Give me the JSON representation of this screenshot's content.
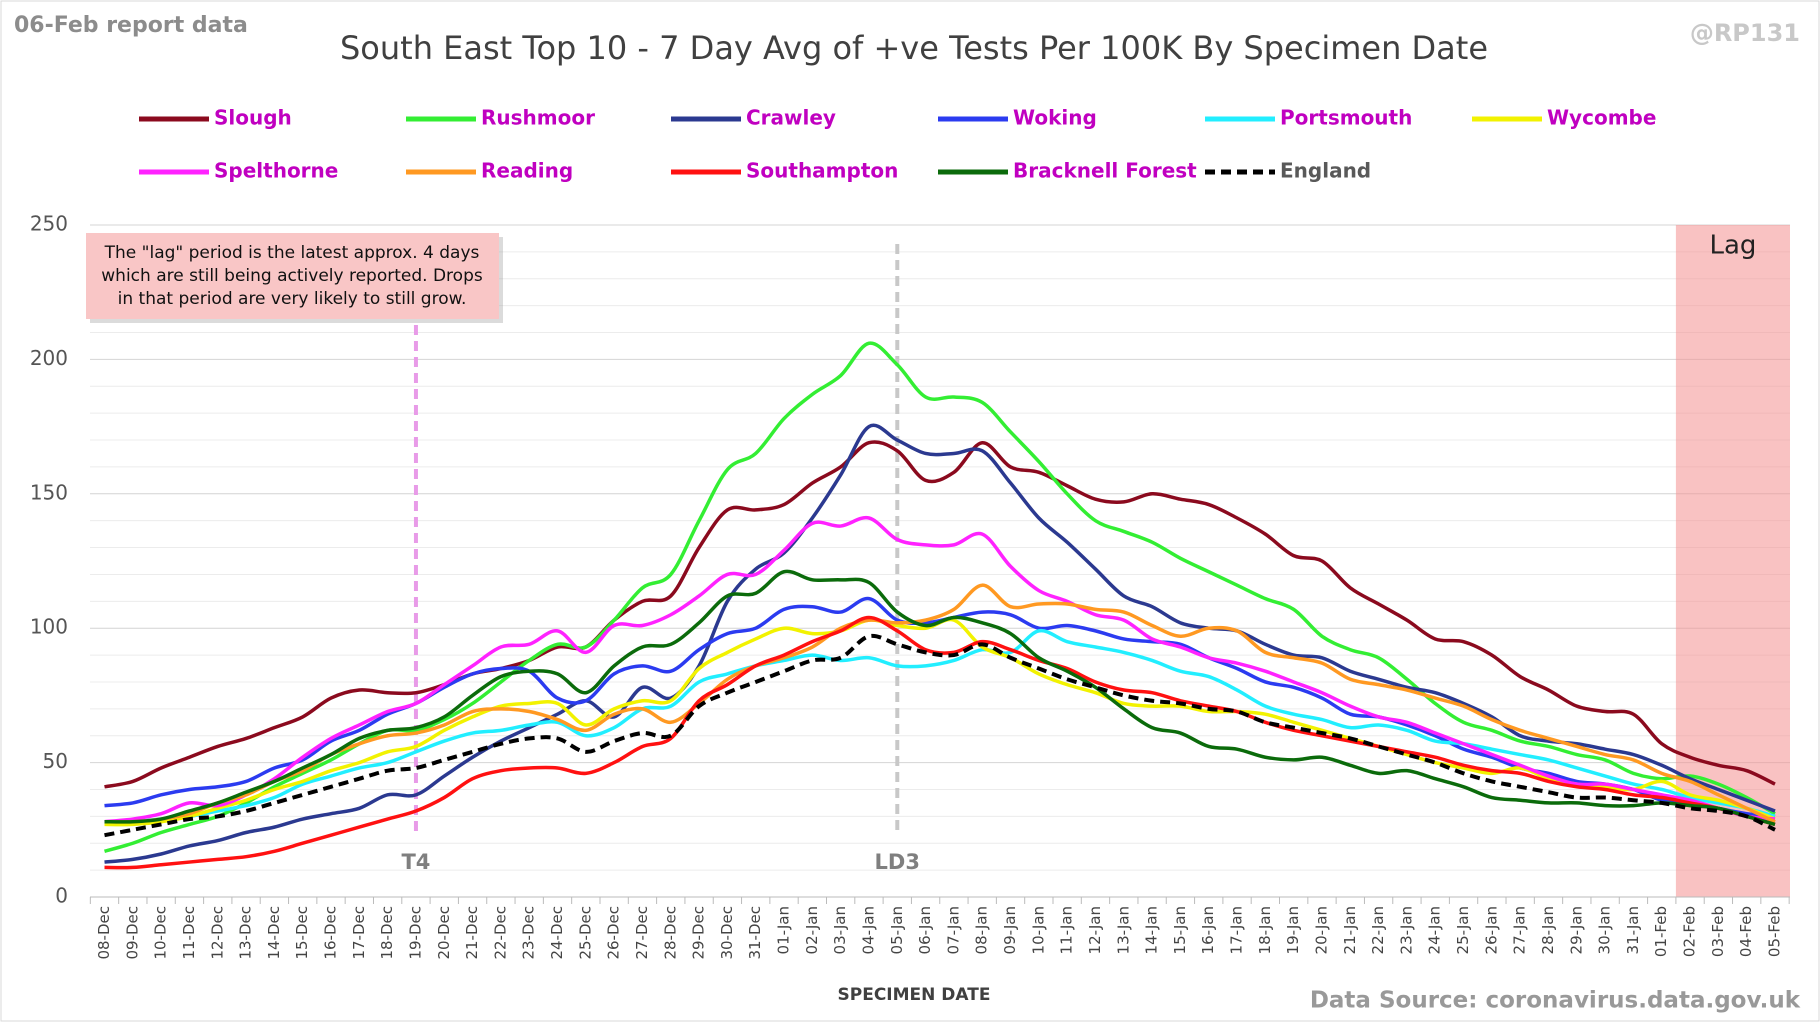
{
  "chart_data": {
    "type": "line",
    "title": "South East Top 10 - 7 Day Avg of +ve Tests Per 100K By Specimen Date",
    "report_note": "06-Feb report data",
    "handle": "@RP131",
    "x_label": "SPECIMEN DATE",
    "source": "Data Source: coronavirus.data.gov.uk",
    "note": [
      "The \"lag\" period is the latest approx. 4 days",
      "which are still being actively reported.  Drops",
      "in that period are very likely to still grow."
    ],
    "lag": {
      "label": "Lag",
      "from": "01-Feb"
    },
    "markers": [
      {
        "label": "T4",
        "x": "19-Dec",
        "color": "#e89be8"
      },
      {
        "label": "LD3",
        "x": "05-Jan",
        "color": "#c8c8c8"
      }
    ],
    "legend_text_color": "#c000c0",
    "categories": [
      "08-Dec",
      "09-Dec",
      "10-Dec",
      "11-Dec",
      "12-Dec",
      "13-Dec",
      "14-Dec",
      "15-Dec",
      "16-Dec",
      "17-Dec",
      "18-Dec",
      "19-Dec",
      "20-Dec",
      "21-Dec",
      "22-Dec",
      "23-Dec",
      "24-Dec",
      "25-Dec",
      "26-Dec",
      "27-Dec",
      "28-Dec",
      "29-Dec",
      "30-Dec",
      "31-Dec",
      "01-Jan",
      "02-Jan",
      "03-Jan",
      "04-Jan",
      "05-Jan",
      "06-Jan",
      "07-Jan",
      "08-Jan",
      "09-Jan",
      "10-Jan",
      "11-Jan",
      "12-Jan",
      "13-Jan",
      "14-Jan",
      "15-Jan",
      "16-Jan",
      "17-Jan",
      "18-Jan",
      "19-Jan",
      "20-Jan",
      "21-Jan",
      "22-Jan",
      "23-Jan",
      "24-Jan",
      "25-Jan",
      "26-Jan",
      "27-Jan",
      "28-Jan",
      "29-Jan",
      "30-Jan",
      "31-Jan",
      "01-Feb",
      "02-Feb",
      "03-Feb",
      "04-Feb",
      "05-Feb"
    ],
    "ylim": [
      0,
      250
    ],
    "yticks": [
      0,
      50,
      100,
      150,
      200,
      250
    ],
    "minor_yticks": [
      10,
      20,
      30,
      40,
      60,
      70,
      80,
      90,
      110,
      120,
      130,
      140,
      160,
      170,
      180,
      190,
      210,
      220,
      230,
      240
    ],
    "grid": true,
    "series": [
      {
        "name": "Slough",
        "color": "#8b0a1e",
        "values": [
          41,
          43,
          48,
          52,
          56,
          59,
          63,
          67,
          74,
          77,
          76,
          76,
          79,
          83,
          85,
          88,
          93,
          93,
          103,
          110,
          112,
          130,
          144,
          144,
          146,
          154,
          160,
          169,
          166,
          155,
          158,
          169,
          160,
          158,
          153,
          148,
          147,
          150,
          148,
          146,
          141,
          135,
          127,
          125,
          115,
          109,
          103,
          96,
          95,
          90,
          82,
          77,
          71,
          69,
          68,
          57,
          52,
          49,
          47,
          42
        ]
      },
      {
        "name": "Rushmoor",
        "color": "#33ee33",
        "values": [
          17,
          20,
          24,
          27,
          30,
          35,
          41,
          46,
          51,
          57,
          62,
          62,
          66,
          72,
          80,
          88,
          94,
          93,
          103,
          115,
          120,
          140,
          159,
          165,
          178,
          187,
          194,
          206,
          198,
          186,
          186,
          184,
          173,
          162,
          150,
          140,
          136,
          132,
          126,
          121,
          116,
          111,
          107,
          97,
          92,
          89,
          81,
          72,
          65,
          62,
          58,
          56,
          53,
          51,
          46,
          44,
          45,
          42,
          37,
          31
        ]
      },
      {
        "name": "Crawley",
        "color": "#2b3990",
        "values": [
          13,
          14,
          16,
          19,
          21,
          24,
          26,
          29,
          31,
          33,
          38,
          38,
          45,
          52,
          58,
          63,
          68,
          73,
          67,
          78,
          74,
          86,
          110,
          122,
          128,
          141,
          157,
          175,
          170,
          165,
          165,
          166,
          154,
          141,
          132,
          122,
          112,
          108,
          102,
          100,
          99,
          94,
          90,
          89,
          84,
          81,
          78,
          76,
          72,
          67,
          60,
          58,
          57,
          55,
          53,
          49,
          44,
          40,
          36,
          32
        ]
      },
      {
        "name": "Woking",
        "color": "#2b3bf0",
        "values": [
          34,
          35,
          38,
          40,
          41,
          43,
          48,
          51,
          58,
          62,
          68,
          72,
          78,
          83,
          85,
          84,
          74,
          73,
          83,
          86,
          84,
          92,
          98,
          100,
          107,
          108,
          106,
          111,
          103,
          102,
          104,
          106,
          105,
          100,
          101,
          99,
          96,
          95,
          94,
          89,
          85,
          80,
          78,
          74,
          68,
          67,
          64,
          60,
          55,
          52,
          48,
          46,
          43,
          42,
          40,
          36,
          35,
          33,
          31,
          30
        ]
      },
      {
        "name": "Portsmouth",
        "color": "#22eeff",
        "values": [
          28,
          28,
          29,
          30,
          32,
          34,
          37,
          42,
          45,
          48,
          50,
          54,
          58,
          61,
          62,
          64,
          65,
          60,
          63,
          70,
          71,
          80,
          83,
          86,
          88,
          90,
          88,
          89,
          86,
          86,
          88,
          92,
          91,
          99,
          95,
          93,
          91,
          88,
          84,
          82,
          77,
          71,
          68,
          66,
          63,
          64,
          62,
          58,
          57,
          55,
          53,
          51,
          48,
          45,
          42,
          40,
          37,
          35,
          33,
          30
        ]
      },
      {
        "name": "Wycombe",
        "color": "#f2f200",
        "values": [
          27,
          27,
          28,
          30,
          33,
          36,
          40,
          43,
          47,
          50,
          54,
          56,
          62,
          67,
          71,
          72,
          72,
          64,
          70,
          73,
          73,
          85,
          91,
          96,
          100,
          98,
          99,
          103,
          101,
          100,
          103,
          93,
          89,
          83,
          79,
          76,
          72,
          71,
          71,
          69,
          69,
          68,
          65,
          62,
          59,
          56,
          53,
          50,
          48,
          46,
          48,
          44,
          42,
          41,
          40,
          43,
          38,
          36,
          33,
          29
        ]
      },
      {
        "name": "Spelthorne",
        "color": "#ff22ff",
        "values": [
          28,
          29,
          31,
          35,
          34,
          38,
          44,
          52,
          59,
          64,
          69,
          72,
          79,
          86,
          93,
          94,
          99,
          91,
          101,
          101,
          105,
          112,
          120,
          120,
          129,
          139,
          138,
          141,
          133,
          131,
          131,
          135,
          123,
          114,
          110,
          105,
          103,
          96,
          93,
          89,
          87,
          84,
          80,
          76,
          71,
          67,
          65,
          61,
          57,
          53,
          49,
          45,
          42,
          42,
          40,
          38,
          36,
          33,
          30,
          29
        ]
      },
      {
        "name": "Reading",
        "color": "#ff9922",
        "values": [
          28,
          28,
          29,
          31,
          35,
          38,
          43,
          47,
          53,
          57,
          60,
          61,
          64,
          69,
          70,
          69,
          66,
          62,
          68,
          70,
          65,
          72,
          81,
          86,
          89,
          93,
          100,
          103,
          102,
          103,
          107,
          116,
          108,
          109,
          109,
          107,
          106,
          101,
          97,
          100,
          99,
          91,
          89,
          87,
          81,
          79,
          77,
          74,
          71,
          66,
          62,
          59,
          56,
          53,
          51,
          46,
          43,
          38,
          33,
          28
        ]
      },
      {
        "name": "Southampton",
        "color": "#ff1111",
        "values": [
          11,
          11,
          12,
          13,
          14,
          15,
          17,
          20,
          23,
          26,
          29,
          32,
          37,
          44,
          47,
          48,
          48,
          46,
          50,
          56,
          59,
          73,
          79,
          86,
          90,
          95,
          99,
          104,
          99,
          92,
          91,
          95,
          92,
          88,
          85,
          80,
          77,
          76,
          73,
          71,
          69,
          65,
          62,
          60,
          58,
          56,
          54,
          52,
          49,
          47,
          46,
          43,
          41,
          40,
          38,
          37,
          35,
          33,
          30,
          27
        ]
      },
      {
        "name": "Bracknell Forest",
        "color": "#0b6b0b",
        "values": [
          28,
          28,
          29,
          32,
          35,
          39,
          43,
          48,
          53,
          59,
          62,
          63,
          67,
          75,
          82,
          84,
          83,
          76,
          86,
          93,
          94,
          102,
          112,
          113,
          121,
          118,
          118,
          117,
          106,
          101,
          104,
          102,
          98,
          89,
          84,
          78,
          70,
          63,
          61,
          56,
          55,
          52,
          51,
          52,
          49,
          46,
          47,
          44,
          41,
          37,
          36,
          35,
          35,
          34,
          34,
          35,
          34,
          33,
          30,
          27
        ]
      },
      {
        "name": "England",
        "color": "#000000",
        "dash": true,
        "values": [
          23,
          25,
          27,
          29,
          30,
          32,
          35,
          38,
          41,
          44,
          47,
          48,
          51,
          54,
          57,
          59,
          59,
          54,
          58,
          61,
          60,
          71,
          76,
          80,
          84,
          88,
          89,
          97,
          94,
          91,
          90,
          94,
          89,
          85,
          81,
          78,
          75,
          73,
          72,
          70,
          69,
          65,
          63,
          61,
          59,
          56,
          53,
          50,
          46,
          43,
          41,
          39,
          37,
          37,
          36,
          35,
          33,
          32,
          30,
          25
        ]
      }
    ]
  }
}
